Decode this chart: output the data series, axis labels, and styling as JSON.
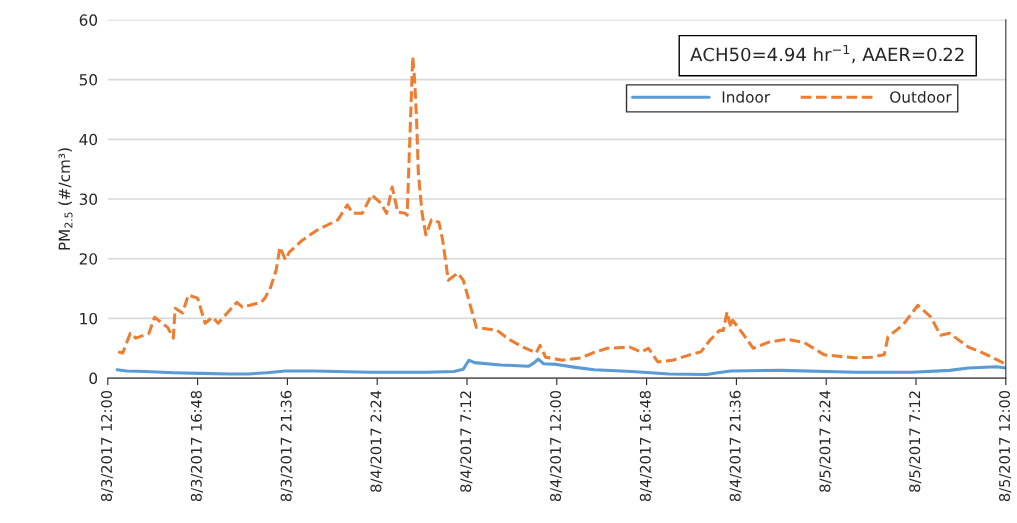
{
  "chart_data": {
    "type": "line",
    "ylabel": "PM$_{2.5}$ (#/cm³)",
    "annotations": [
      "ACH50=4.94 hr$^{−1}$, AAER=0.22"
    ],
    "xlim": [
      "2017-08-03T12:00",
      "2017-08-05T12:00"
    ],
    "ylim": [
      0,
      60
    ],
    "yticks": [
      0,
      10,
      20,
      30,
      40,
      50,
      60
    ],
    "xticks": [
      {
        "value": "2017-08-03T12:00",
        "label": "8/3/2017 12:00"
      },
      {
        "value": "2017-08-03T16:48",
        "label": "8/3/2017 16:48"
      },
      {
        "value": "2017-08-03T21:36",
        "label": "8/3/2017 21:36"
      },
      {
        "value": "2017-08-04T02:24",
        "label": "8/4/2017 2:24"
      },
      {
        "value": "2017-08-04T07:12",
        "label": "8/4/2017 7:12"
      },
      {
        "value": "2017-08-04T12:00",
        "label": "8/4/2017 12:00"
      },
      {
        "value": "2017-08-04T16:48",
        "label": "8/4/2017 16:48"
      },
      {
        "value": "2017-08-04T21:36",
        "label": "8/4/2017 21:36"
      },
      {
        "value": "2017-08-05T02:24",
        "label": "8/5/2017 2:24"
      },
      {
        "value": "2017-08-05T07:12",
        "label": "8/5/2017 7:12"
      },
      {
        "value": "2017-08-05T12:00",
        "label": "8/5/2017 12:00"
      }
    ],
    "grid": "y",
    "legend": "top right",
    "series": [
      {
        "name": "Indoor",
        "color": "#5b9bd5",
        "line_style": "solid",
        "x": [
          "2017-08-03T12:30",
          "2017-08-03T13:00",
          "2017-08-03T14:00",
          "2017-08-03T15:30",
          "2017-08-03T17:00",
          "2017-08-03T18:30",
          "2017-08-03T19:30",
          "2017-08-03T20:30",
          "2017-08-03T21:30",
          "2017-08-03T23:00",
          "2017-08-04T02:00",
          "2017-08-04T05:00",
          "2017-08-04T06:30",
          "2017-08-04T07:00",
          "2017-08-04T07:18",
          "2017-08-04T07:36",
          "2017-08-04T09:00",
          "2017-08-04T10:30",
          "2017-08-04T10:48",
          "2017-08-04T11:00",
          "2017-08-04T11:18",
          "2017-08-04T12:00",
          "2017-08-04T13:00",
          "2017-08-04T14:00",
          "2017-08-04T16:00",
          "2017-08-04T18:00",
          "2017-08-04T20:00",
          "2017-08-04T20:36",
          "2017-08-04T21:18",
          "2017-08-05T00:00",
          "2017-08-05T04:00",
          "2017-08-05T07:00",
          "2017-08-05T09:00",
          "2017-08-05T10:00",
          "2017-08-05T11:30",
          "2017-08-05T12:00"
        ],
        "values": [
          1.4,
          1.2,
          1.1,
          0.9,
          0.8,
          0.7,
          0.7,
          0.9,
          1.2,
          1.2,
          1.0,
          1.0,
          1.1,
          1.5,
          3.0,
          2.6,
          2.2,
          2.0,
          2.6,
          3.2,
          2.4,
          2.3,
          1.8,
          1.4,
          1.1,
          0.7,
          0.6,
          0.9,
          1.2,
          1.3,
          1.0,
          1.0,
          1.3,
          1.7,
          1.9,
          1.7
        ]
      },
      {
        "name": "Outdoor",
        "color": "#ed7d31",
        "line_style": "dashed",
        "x": [
          "2017-08-03T12:33",
          "2017-08-03T12:48",
          "2017-08-03T13:12",
          "2017-08-03T13:30",
          "2017-08-03T14:12",
          "2017-08-03T14:30",
          "2017-08-03T14:54",
          "2017-08-03T15:12",
          "2017-08-03T15:30",
          "2017-08-03T15:36",
          "2017-08-03T16:00",
          "2017-08-03T16:18",
          "2017-08-03T16:48",
          "2017-08-03T17:12",
          "2017-08-03T17:36",
          "2017-08-03T17:54",
          "2017-08-03T18:18",
          "2017-08-03T18:54",
          "2017-08-03T19:12",
          "2017-08-03T20:12",
          "2017-08-03T20:24",
          "2017-08-03T20:42",
          "2017-08-03T21:00",
          "2017-08-03T21:12",
          "2017-08-03T21:30",
          "2017-08-03T21:42",
          "2017-08-03T22:24",
          "2017-08-03T23:12",
          "2017-08-04T00:18",
          "2017-08-04T00:48",
          "2017-08-04T01:06",
          "2017-08-04T01:36",
          "2017-08-04T02:06",
          "2017-08-04T02:36",
          "2017-08-04T02:54",
          "2017-08-04T03:12",
          "2017-08-04T03:30",
          "2017-08-04T03:54",
          "2017-08-04T04:00",
          "2017-08-04T04:18",
          "2017-08-04T04:24",
          "2017-08-04T04:30",
          "2017-08-04T04:36",
          "2017-08-04T04:48",
          "2017-08-04T05:00",
          "2017-08-04T05:18",
          "2017-08-04T05:42",
          "2017-08-04T05:54",
          "2017-08-04T06:12",
          "2017-08-04T06:42",
          "2017-08-04T07:00",
          "2017-08-04T07:24",
          "2017-08-04T07:42",
          "2017-08-04T08:48",
          "2017-08-04T09:30",
          "2017-08-04T10:12",
          "2017-08-04T10:54",
          "2017-08-04T11:06",
          "2017-08-04T11:24",
          "2017-08-04T12:18",
          "2017-08-04T13:18",
          "2017-08-04T13:54",
          "2017-08-04T14:42",
          "2017-08-04T15:54",
          "2017-08-04T16:30",
          "2017-08-04T16:54",
          "2017-08-04T17:24",
          "2017-08-04T18:12",
          "2017-08-04T19:06",
          "2017-08-04T19:42",
          "2017-08-04T20:12",
          "2017-08-04T20:42",
          "2017-08-04T20:54",
          "2017-08-04T21:06",
          "2017-08-04T21:18",
          "2017-08-04T21:24",
          "2017-08-04T22:00",
          "2017-08-04T22:30",
          "2017-08-04T23:18",
          "2017-08-05T00:18",
          "2017-08-05T01:12",
          "2017-08-05T02:18",
          "2017-08-05T03:54",
          "2017-08-05T04:48",
          "2017-08-05T05:30",
          "2017-08-05T05:42",
          "2017-08-05T06:30",
          "2017-08-05T07:18",
          "2017-08-05T08:00",
          "2017-08-05T08:30",
          "2017-08-05T09:00",
          "2017-08-05T10:00",
          "2017-08-05T10:48",
          "2017-08-05T11:54"
        ],
        "values": [
          4.4,
          4.2,
          7.5,
          6.7,
          7.5,
          10.2,
          9.2,
          8.5,
          6.7,
          11.7,
          10.9,
          13.9,
          13.4,
          9.2,
          10.2,
          9.2,
          10.6,
          12.7,
          11.9,
          12.7,
          13.4,
          15.2,
          18.1,
          21.9,
          19.8,
          21.1,
          23.1,
          24.8,
          26.5,
          29.0,
          27.6,
          27.6,
          30.7,
          29.3,
          27.6,
          32.0,
          27.8,
          27.6,
          27.3,
          53.8,
          49.9,
          43.7,
          34.3,
          27.6,
          24.0,
          26.5,
          26.1,
          23.1,
          16.4,
          17.6,
          16.4,
          11.9,
          8.5,
          8.0,
          6.4,
          5.2,
          4.2,
          5.5,
          3.5,
          3.0,
          3.4,
          4.2,
          5.0,
          5.2,
          4.4,
          5.0,
          2.7,
          3.0,
          3.9,
          4.4,
          6.4,
          8.0,
          8.0,
          11.1,
          8.5,
          9.7,
          7.2,
          5.0,
          6.0,
          6.5,
          6.0,
          3.9,
          3.4,
          3.5,
          3.9,
          6.9,
          8.9,
          12.2,
          10.2,
          7.2,
          7.5,
          5.2,
          4.2,
          2.5
        ]
      }
    ]
  }
}
